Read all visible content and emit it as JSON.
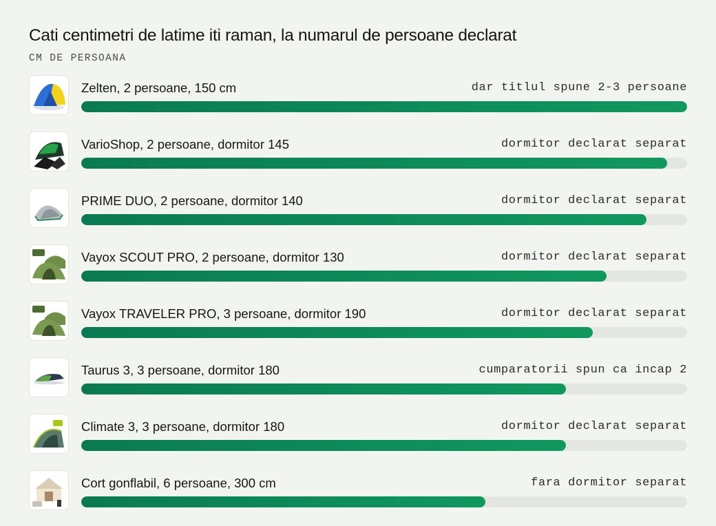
{
  "title": "Cati centimetri de latime iti raman, la numarul de persoane declarat",
  "subtitle": "CM DE PERSOANA",
  "colors": {
    "bar": "#0f8f5c",
    "track": "#e4e6e2",
    "background": "#f2f4f0"
  },
  "chart_data": {
    "type": "bar",
    "orientation": "horizontal",
    "title": "Cati centimetri de latime iti raman, la numarul de persoane declarat",
    "ylabel": "CM DE PERSOANA",
    "grid": false,
    "xlim": [
      0,
      75
    ],
    "categories": [
      "Zelten, 2 persoane, 150 cm",
      "VarioShop, 2 persoane, dormitor 145",
      "PRIME DUO, 2 persoane, dormitor 140",
      "Vayox SCOUT PRO, 2 persoane, dormitor 130",
      "Vayox TRAVELER PRO, 3 persoane, dormitor 190",
      "Taurus 3, 3 persoane, dormitor 180",
      "Climate 3, 3 persoane, dormitor 180",
      "Cort gonflabil, 6 persoane, 300 cm"
    ],
    "values": [
      75,
      72.5,
      70,
      65,
      63.3,
      60,
      60,
      50
    ],
    "annotations": [
      "dar titlul spune 2-3 persoane",
      "dormitor declarat separat",
      "dormitor declarat separat",
      "dormitor declarat separat",
      "dormitor declarat separat",
      "cumparatorii spun ca incap 2",
      "dormitor declarat separat",
      "fara dormitor separat"
    ],
    "icons": [
      "yellow-blue-dome-tent-icon",
      "dark-green-tent-icon",
      "grey-dome-tent-icon",
      "green-tunnel-tent-icon",
      "green-tunnel-tent-icon",
      "small-dark-tent-icon",
      "green-dome-tent-icon",
      "inflatable-tent-icon"
    ]
  }
}
